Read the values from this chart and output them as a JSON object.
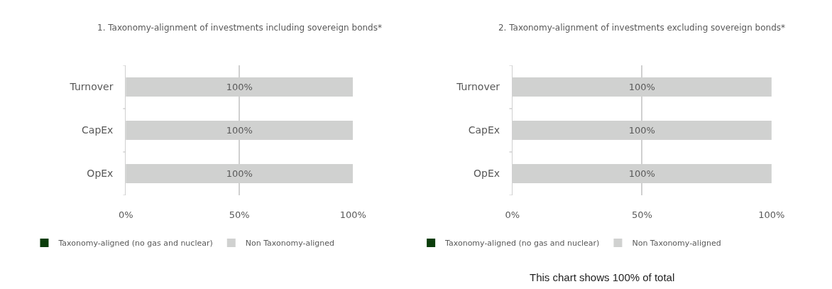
{
  "chart_data": [
    {
      "type": "bar",
      "orientation": "horizontal",
      "stacked": true,
      "title": "1. Taxonomy-alignment of investments including sovereign bonds*",
      "categories": [
        "Turnover",
        "CapEx",
        "OpEx"
      ],
      "series": [
        {
          "name": "Taxonomy-aligned (no gas and nuclear)",
          "color": "#0b3d0b",
          "values": [
            0,
            0,
            0
          ],
          "value_labels": [
            null,
            null,
            null
          ]
        },
        {
          "name": "Non Taxonomy-aligned",
          "color": "#d0d1d0",
          "values": [
            100,
            100,
            100
          ],
          "value_labels": [
            "100%",
            "100%",
            "100%"
          ]
        }
      ],
      "xlim": [
        0,
        100
      ],
      "xticks": [
        {
          "value": 0,
          "label": "0%"
        },
        {
          "value": 50,
          "label": "50%"
        },
        {
          "value": 100,
          "label": "100%"
        }
      ],
      "grid": "x",
      "legend": "bottom"
    },
    {
      "type": "bar",
      "orientation": "horizontal",
      "stacked": true,
      "title": "2. Taxonomy-alignment of investments excluding sovereign bonds*",
      "categories": [
        "Turnover",
        "CapEx",
        "OpEx"
      ],
      "series": [
        {
          "name": "Taxonomy-aligned (no gas and nuclear)",
          "color": "#0b3d0b",
          "values": [
            0,
            0,
            0
          ],
          "value_labels": [
            null,
            null,
            null
          ]
        },
        {
          "name": "Non Taxonomy-aligned",
          "color": "#d0d1d0",
          "values": [
            100,
            100,
            100
          ],
          "value_labels": [
            "100%",
            "100%",
            "100%"
          ]
        }
      ],
      "xlim": [
        0,
        100
      ],
      "xticks": [
        {
          "value": 0,
          "label": "0%"
        },
        {
          "value": 50,
          "label": "50%"
        },
        {
          "value": 100,
          "label": "100%"
        }
      ],
      "grid": "x",
      "legend": "bottom",
      "annotations": [
        "This chart shows 100% of total"
      ]
    }
  ]
}
